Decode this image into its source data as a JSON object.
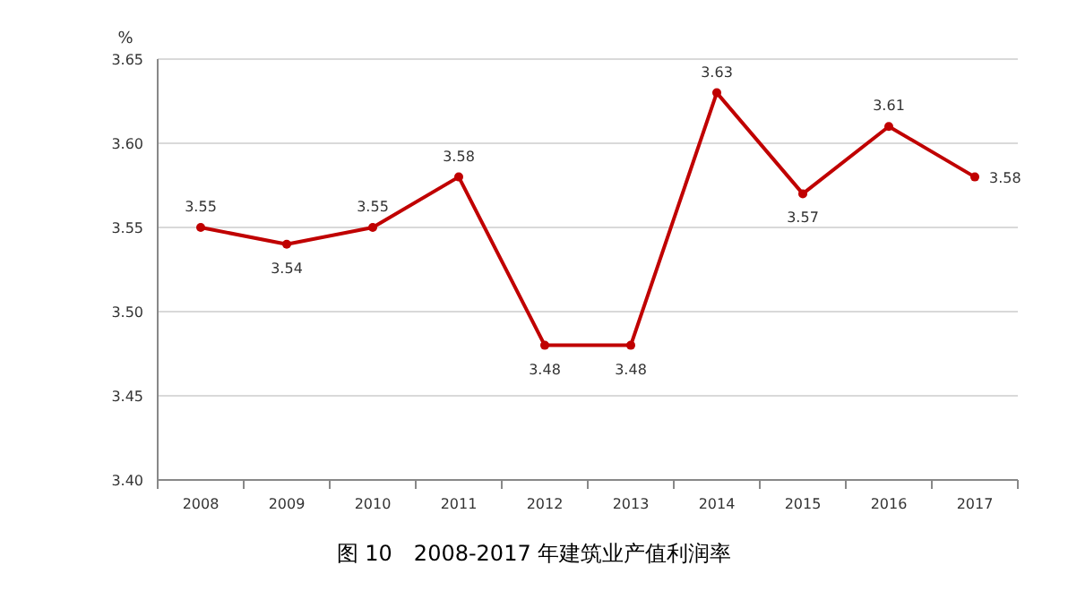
{
  "chart_data": {
    "type": "line",
    "title": "图 10　2008-2017 年建筑业产值利润率",
    "ylabel": "%",
    "categories": [
      "2008",
      "2009",
      "2010",
      "2011",
      "2012",
      "2013",
      "2014",
      "2015",
      "2016",
      "2017"
    ],
    "series": [
      {
        "color": "#c00000",
        "values": [
          3.55,
          3.54,
          3.55,
          3.58,
          3.48,
          3.48,
          3.63,
          3.57,
          3.61,
          3.58
        ]
      }
    ],
    "ylim": [
      3.4,
      3.65
    ],
    "yticks": [
      {
        "value": 3.4,
        "label": "3.40"
      },
      {
        "value": 3.45,
        "label": "3.45"
      },
      {
        "value": 3.5,
        "label": "3.50"
      },
      {
        "value": 3.55,
        "label": "3.55"
      },
      {
        "value": 3.6,
        "label": "3.60"
      },
      {
        "value": 3.65,
        "label": "3.65"
      }
    ],
    "grid": "y",
    "marker": "circle",
    "line_style": "solid",
    "data_labels": true
  }
}
